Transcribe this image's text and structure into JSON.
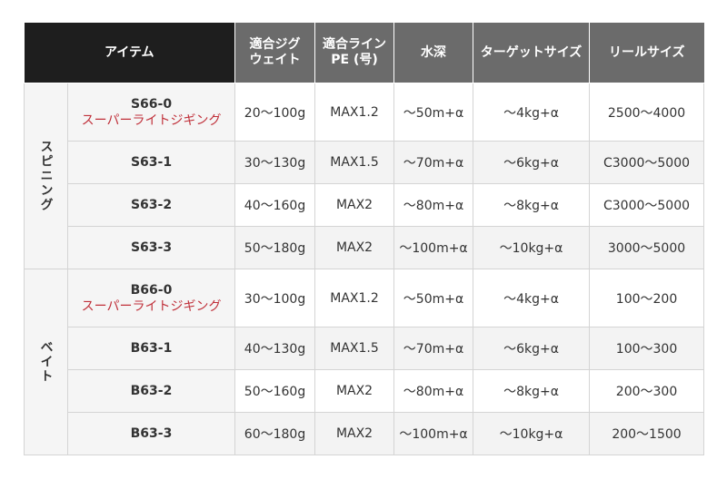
{
  "headers": [
    "アイテム",
    "適合ジグ\nウェイト",
    "適合ライン\nPE (号)",
    "水深",
    "ターゲットサイズ",
    "リールサイズ"
  ],
  "groups": [
    {
      "category": "スピニング",
      "rows": [
        {
          "model": "S66-0",
          "sub": "スーパーライトジギング",
          "jig": "20〜100g",
          "line": "MAX1.2",
          "depth": "〜50m+α",
          "target": "〜4kg+α",
          "reel": "2500〜4000"
        },
        {
          "model": "S63-1",
          "jig": "30〜130g",
          "line": "MAX1.5",
          "depth": "〜70m+α",
          "target": "〜6kg+α",
          "reel": "C3000〜5000"
        },
        {
          "model": "S63-2",
          "jig": "40〜160g",
          "line": "MAX2",
          "depth": "〜80m+α",
          "target": "〜8kg+α",
          "reel": "C3000〜5000"
        },
        {
          "model": "S63-3",
          "jig": "50〜180g",
          "line": "MAX2",
          "depth": "〜100m+α",
          "target": "〜10kg+α",
          "reel": "3000〜5000"
        }
      ]
    },
    {
      "category": "ベイト",
      "rows": [
        {
          "model": "B66-0",
          "sub": "スーパーライトジギング",
          "jig": "30〜100g",
          "line": "MAX1.2",
          "depth": "〜50m+α",
          "target": "〜4kg+α",
          "reel": "100〜200"
        },
        {
          "model": "B63-1",
          "jig": "40〜130g",
          "line": "MAX1.5",
          "depth": "〜70m+α",
          "target": "〜6kg+α",
          "reel": "100〜300"
        },
        {
          "model": "B63-2",
          "jig": "50〜160g",
          "line": "MAX2",
          "depth": "〜80m+α",
          "target": "〜8kg+α",
          "reel": "200〜300"
        },
        {
          "model": "B63-3",
          "jig": "60〜180g",
          "line": "MAX2",
          "depth": "〜100m+α",
          "target": "〜10kg+α",
          "reel": "200〜1500"
        }
      ]
    }
  ],
  "colors": {
    "header_dark": "#1e1e1e",
    "header_gray": "#6b6b6b",
    "subtitle_red": "#c0303a"
  }
}
